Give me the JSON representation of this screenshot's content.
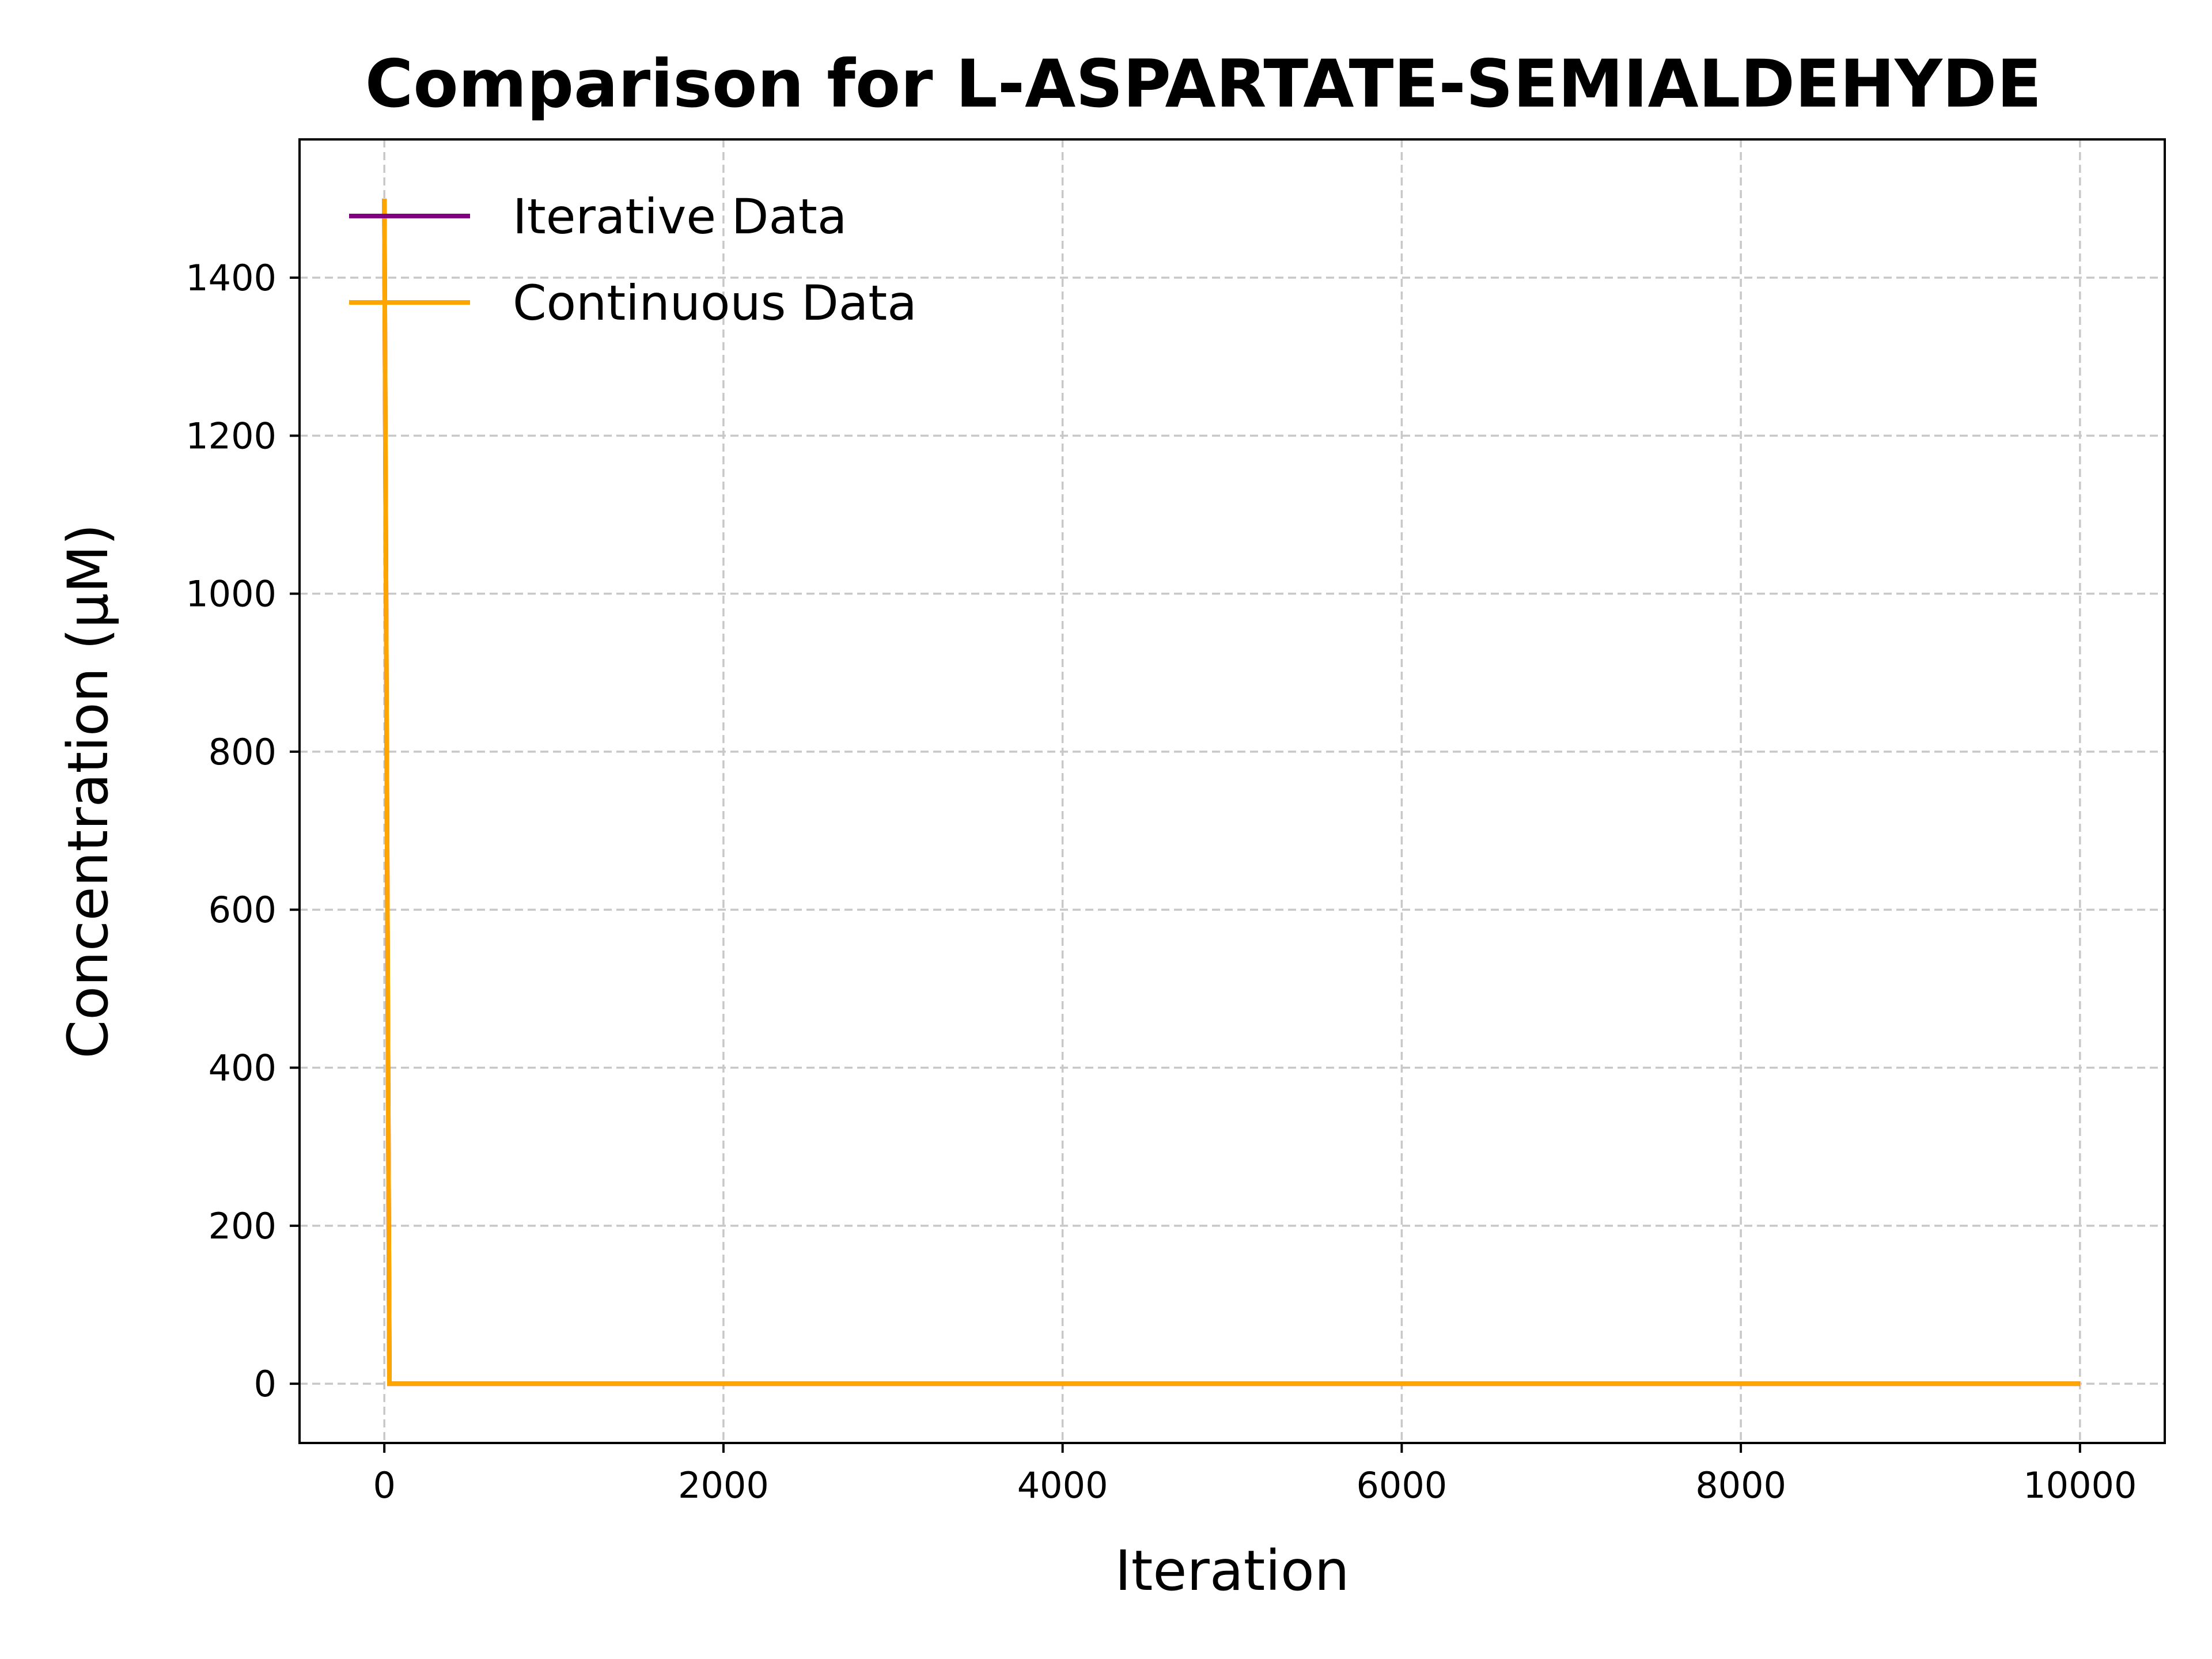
{
  "chart_data": {
    "type": "line",
    "title": "Comparison for L-ASPARTATE-SEMIALDEHYDE",
    "xlabel": "Iteration",
    "ylabel": "Concentration (μM)",
    "xlim": [
      -500,
      10500
    ],
    "ylim": [
      -75,
      1575
    ],
    "xticks": [
      0,
      2000,
      4000,
      6000,
      8000,
      10000
    ],
    "yticks": [
      0,
      200,
      400,
      600,
      800,
      1000,
      1200,
      1400
    ],
    "grid": true,
    "legend_position": "top-left",
    "series": [
      {
        "name": "Iterative Data",
        "color": "#800080",
        "x": [
          0,
          30,
          10000
        ],
        "y": [
          1500,
          0,
          0
        ]
      },
      {
        "name": "Continuous Data",
        "color": "#FFA500",
        "x": [
          0,
          30,
          10000
        ],
        "y": [
          1500,
          0,
          0
        ]
      }
    ]
  }
}
